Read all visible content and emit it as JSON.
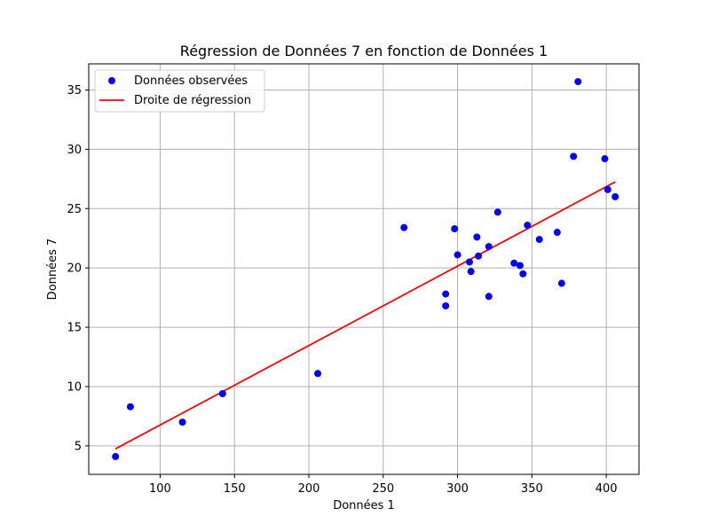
{
  "chart_data": {
    "type": "scatter",
    "title": "Régression de Données 7 en fonction de Données 1",
    "xlabel": "Données 1",
    "ylabel": "Données 7",
    "xlim": [
      52,
      422
    ],
    "ylim": [
      2.6,
      37.2
    ],
    "xticks": [
      100,
      150,
      200,
      250,
      300,
      350,
      400
    ],
    "yticks": [
      5,
      10,
      15,
      20,
      25,
      30,
      35
    ],
    "grid": true,
    "legend_position": "top-left",
    "series": [
      {
        "name": "Données observées",
        "kind": "scatter",
        "color": "#0000ff",
        "points": [
          [
            70,
            4.1
          ],
          [
            80,
            8.3
          ],
          [
            115,
            7.0
          ],
          [
            142,
            9.4
          ],
          [
            206,
            11.1
          ],
          [
            264,
            23.4
          ],
          [
            292,
            17.8
          ],
          [
            292,
            16.8
          ],
          [
            298,
            23.3
          ],
          [
            300,
            21.1
          ],
          [
            308,
            20.5
          ],
          [
            309,
            19.7
          ],
          [
            313,
            22.6
          ],
          [
            314,
            21.0
          ],
          [
            321,
            21.8
          ],
          [
            321,
            17.6
          ],
          [
            327,
            24.7
          ],
          [
            338,
            20.4
          ],
          [
            342,
            20.2
          ],
          [
            344,
            19.5
          ],
          [
            347,
            23.6
          ],
          [
            355,
            22.4
          ],
          [
            367,
            23.0
          ],
          [
            370,
            18.7
          ],
          [
            378,
            29.4
          ],
          [
            381,
            35.7
          ],
          [
            399,
            29.2
          ],
          [
            401,
            26.6
          ],
          [
            406,
            26.0
          ]
        ]
      },
      {
        "name": "Droite de régression",
        "kind": "line",
        "color": "#ff0000",
        "points": [
          [
            70,
            4.75
          ],
          [
            406,
            27.25
          ]
        ]
      }
    ]
  }
}
